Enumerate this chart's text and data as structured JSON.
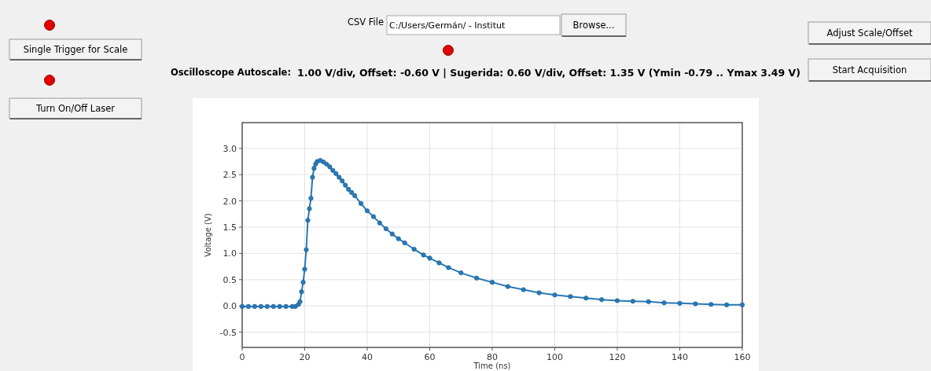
{
  "chart_data": {
    "type": "line",
    "xlabel": "Time (ns)",
    "ylabel": "Voltage (V)",
    "annotations": [
      "Single Trigger for Scale",
      "Turn On/Off Laser",
      "CSV File",
      "C:/Users/Germán/ - Institut",
      "Browse...",
      "Oscilloscope Autoscale:",
      "1.00 V/div, Offset: -0.60 V  |  Sugerida: 0.60 V/div, Offset: 1.35 V  (Ymin -0.79 .. Ymax 3.49 V)",
      "Adjust Scale/Offset",
      "Start Acquisition"
    ],
    "series": [
      {
        "color": "#2a78b5",
        "x": [
          0,
          2,
          4,
          6,
          8,
          10,
          12,
          14,
          16,
          17,
          18,
          18.5,
          19,
          19.5,
          20,
          20.5,
          21,
          21.5,
          22,
          22.5,
          23,
          23.5,
          24,
          25,
          26,
          27,
          28,
          29,
          30,
          31,
          32,
          33,
          34,
          35,
          36,
          38,
          40,
          42,
          44,
          46,
          48,
          50,
          52,
          55,
          58,
          60,
          63,
          66,
          70,
          75,
          80,
          85,
          90,
          95,
          100,
          105,
          110,
          115,
          120,
          125,
          130,
          135,
          140,
          145,
          150,
          155,
          160
        ],
        "values": [
          -0.01,
          -0.01,
          -0.01,
          -0.01,
          -0.01,
          -0.01,
          -0.01,
          -0.01,
          -0.01,
          -0.01,
          0.03,
          0.08,
          0.27,
          0.45,
          0.7,
          1.07,
          1.63,
          1.85,
          2.05,
          2.45,
          2.62,
          2.7,
          2.75,
          2.77,
          2.74,
          2.7,
          2.65,
          2.58,
          2.52,
          2.45,
          2.38,
          2.3,
          2.22,
          2.16,
          2.1,
          1.95,
          1.81,
          1.7,
          1.58,
          1.47,
          1.37,
          1.28,
          1.2,
          1.08,
          0.97,
          0.91,
          0.82,
          0.73,
          0.63,
          0.53,
          0.45,
          0.37,
          0.31,
          0.25,
          0.21,
          0.18,
          0.15,
          0.12,
          0.1,
          0.09,
          0.08,
          0.06,
          0.05,
          0.04,
          0.03,
          0.02,
          0.02
        ]
      }
    ],
    "xlim": [
      0,
      160
    ],
    "xticks": [
      0,
      20,
      40,
      60,
      80,
      100,
      120,
      140,
      160
    ],
    "ylim": [
      -0.79,
      3.49
    ],
    "yticks": [
      {
        "value": -0.5,
        "label": "-0.5"
      },
      {
        "value": 0,
        "label": "0.0"
      },
      {
        "value": 0.5,
        "label": "0.5"
      },
      {
        "value": 1,
        "label": "1.0"
      },
      {
        "value": 1.5,
        "label": "1.5"
      },
      {
        "value": 2,
        "label": "2.0"
      },
      {
        "value": 2.5,
        "label": "2.5"
      },
      {
        "value": 3,
        "label": "3.0"
      }
    ],
    "grid": true,
    "marker": "circle",
    "line_style": "solid"
  }
}
